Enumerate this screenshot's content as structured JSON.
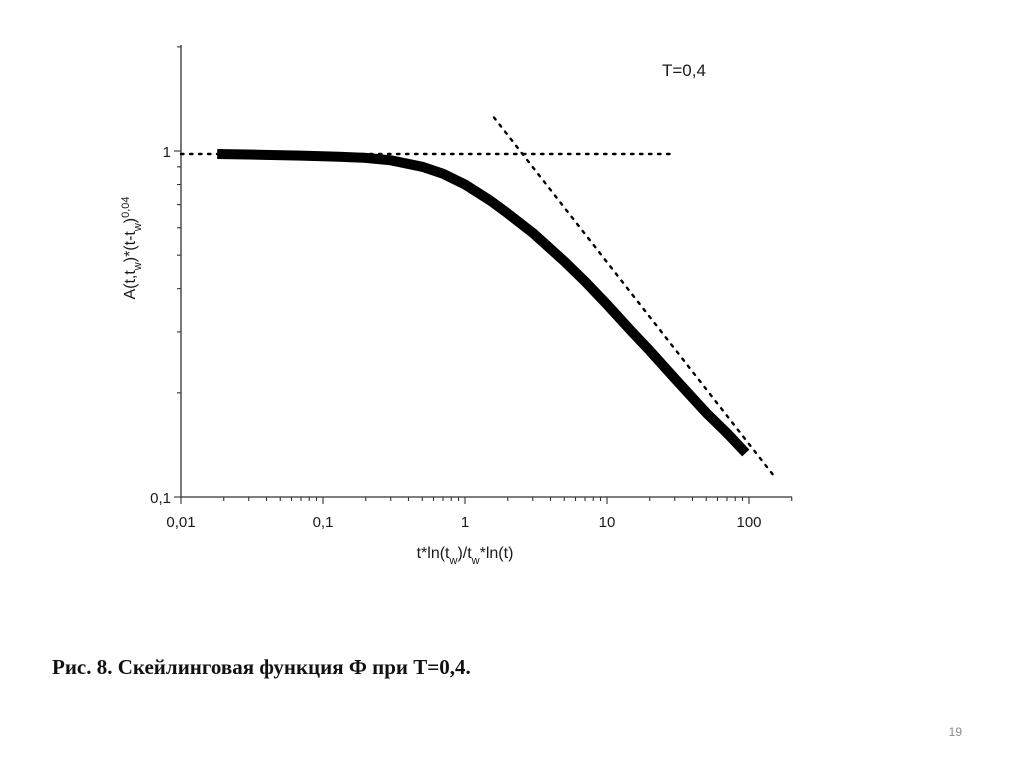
{
  "chart_data": {
    "type": "line",
    "title": "",
    "annotation": "T=0,4",
    "xscale": "log",
    "yscale": "log",
    "xlim": [
      0.01,
      200
    ],
    "ylim": [
      0.1,
      2
    ],
    "x_tick_labels": [
      {
        "value": 0.01,
        "label": "0,01"
      },
      {
        "value": 0.1,
        "label": "0,1"
      },
      {
        "value": 1,
        "label": "1"
      },
      {
        "value": 10,
        "label": "10"
      },
      {
        "value": 100,
        "label": "100"
      }
    ],
    "y_tick_labels": [
      {
        "value": 0.1,
        "label": "0,1"
      },
      {
        "value": 1,
        "label": "1"
      }
    ],
    "xlabel": {
      "parts": [
        "t*ln(t",
        "w",
        ")/t",
        "w",
        "*ln(t)"
      ]
    },
    "ylabel": {
      "parts": [
        "A(t,t",
        "w",
        ")*(t-t",
        "w",
        ")",
        "0,04"
      ]
    },
    "grid": false,
    "series": [
      {
        "style": "thick-solid",
        "color": "#000000",
        "x": [
          0.018,
          0.035,
          0.07,
          0.13,
          0.2,
          0.3,
          0.5,
          0.7,
          1.0,
          1.5,
          2.0,
          3.0,
          5.0,
          7.0,
          10,
          15,
          20,
          30,
          50,
          70,
          95
        ],
        "y": [
          0.98,
          0.976,
          0.97,
          0.963,
          0.955,
          0.94,
          0.9,
          0.86,
          0.8,
          0.72,
          0.66,
          0.58,
          0.48,
          0.42,
          0.36,
          0.3,
          0.265,
          0.22,
          0.175,
          0.153,
          0.134
        ]
      },
      {
        "style": "dotted",
        "color": "#000000",
        "x": [
          0.01,
          30
        ],
        "y": [
          0.98,
          0.98
        ]
      },
      {
        "style": "dotted",
        "color": "#000000",
        "x": [
          1.6,
          150
        ],
        "y": [
          1.25,
          0.115
        ]
      }
    ]
  },
  "caption": "Рис. 8. Скейлинговая функция Ф при T=0,4.",
  "page_number": "19"
}
